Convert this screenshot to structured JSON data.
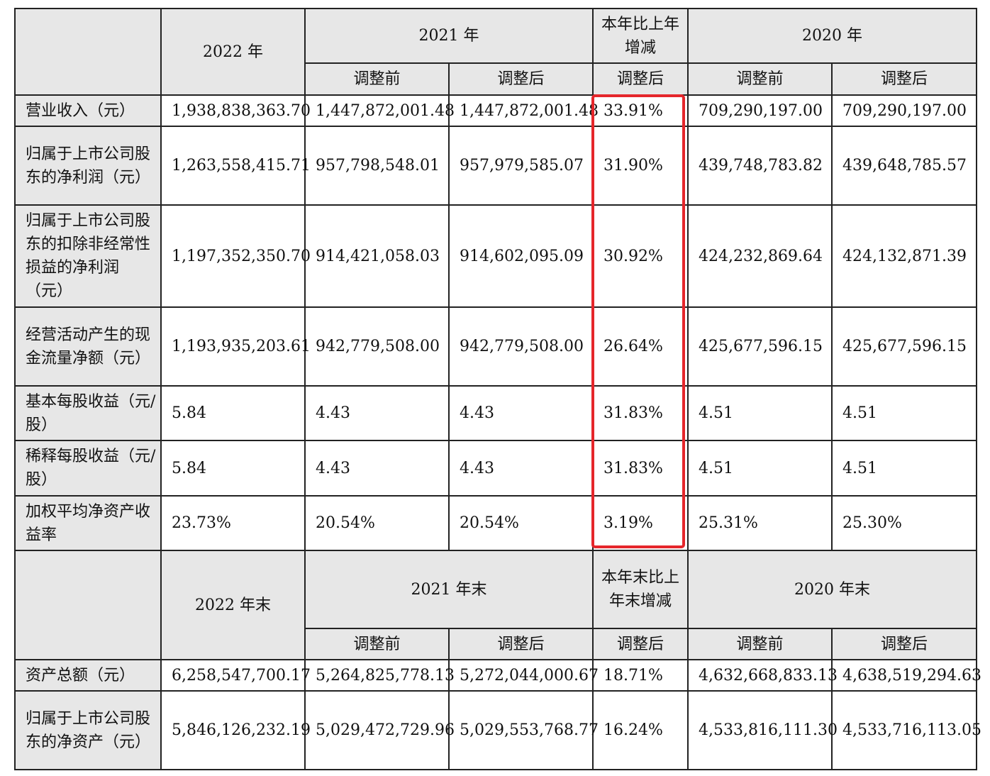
{
  "section1": {
    "year_2022": "2022 年",
    "year_2021": "2021 年",
    "change": "本年比上年增减",
    "year_2020": "2020 年",
    "before": "调整前",
    "after": "调整后",
    "rows": [
      {
        "label": "营业收入（元）",
        "v": [
          "1,938,838,363.70",
          "1,447,872,001.48",
          "1,447,872,001.48",
          "33.91%",
          "709,290,197.00",
          "709,290,197.00"
        ]
      },
      {
        "label": "归属于上市公司股东的净利润（元）",
        "v": [
          "1,263,558,415.71",
          "957,798,548.01",
          "957,979,585.07",
          "31.90%",
          "439,748,783.82",
          "439,648,785.57"
        ]
      },
      {
        "label": "归属于上市公司股东的扣除非经常性损益的净利润（元）",
        "v": [
          "1,197,352,350.70",
          "914,421,058.03",
          "914,602,095.09",
          "30.92%",
          "424,232,869.64",
          "424,132,871.39"
        ]
      },
      {
        "label": "经营活动产生的现金流量净额（元）",
        "v": [
          "1,193,935,203.61",
          "942,779,508.00",
          "942,779,508.00",
          "26.64%",
          "425,677,596.15",
          "425,677,596.15"
        ]
      },
      {
        "label": "基本每股收益（元/股）",
        "v": [
          "5.84",
          "4.43",
          "4.43",
          "31.83%",
          "4.51",
          "4.51"
        ]
      },
      {
        "label": "稀释每股收益（元/股）",
        "v": [
          "5.84",
          "4.43",
          "4.43",
          "31.83%",
          "4.51",
          "4.51"
        ]
      },
      {
        "label": "加权平均净资产收益率",
        "v": [
          "23.73%",
          "20.54%",
          "20.54%",
          "3.19%",
          "25.31%",
          "25.30%"
        ]
      }
    ]
  },
  "section2": {
    "year_2022": "2022 年末",
    "year_2021": "2021 年末",
    "change": "本年末比上年末增减",
    "year_2020": "2020 年末",
    "before": "调整前",
    "after": "调整后",
    "rows": [
      {
        "label": "资产总额（元）",
        "v": [
          "6,258,547,700.17",
          "5,264,825,778.13",
          "5,272,044,000.67",
          "18.71%",
          "4,632,668,833.13",
          "4,638,519,294.63"
        ]
      },
      {
        "label": "归属于上市公司股东的净资产（元）",
        "v": [
          "5,846,126,232.19",
          "5,029,472,729.96",
          "5,029,553,768.77",
          "16.24%",
          "4,533,816,111.30",
          "4,533,716,113.05"
        ]
      }
    ]
  },
  "highlight_color": "#e5262b"
}
